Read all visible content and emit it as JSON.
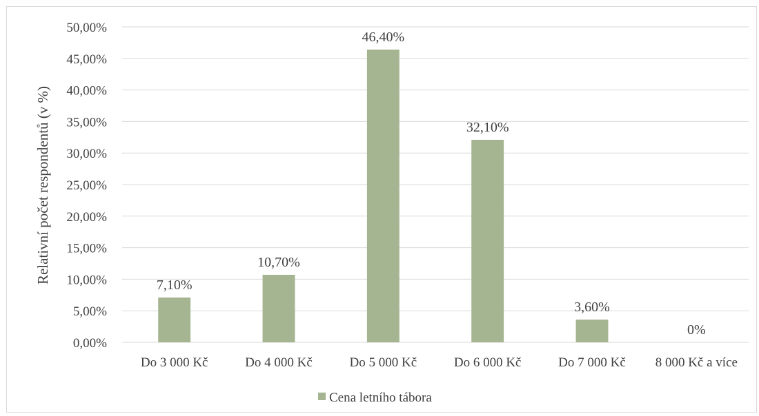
{
  "chart_data": {
    "type": "bar",
    "categories": [
      "Do 3 000 Kč",
      "Do 4 000 Kč",
      "Do 5 000 Kč",
      "Do 6 000 Kč",
      "Do 7 000 Kč",
      "8 000 Kč a více"
    ],
    "series": [
      {
        "name": "Cena letního tábora",
        "values": [
          7.1,
          10.7,
          46.4,
          32.1,
          3.6,
          0
        ],
        "data_labels": [
          "7,10%",
          "10,70%",
          "46,40%",
          "32,10%",
          "3,60%",
          "0%"
        ],
        "color": "#a5b592"
      }
    ],
    "ylabel": "Relativní počet respondentů (v %)",
    "xlabel": "",
    "ylim": [
      0,
      50
    ],
    "yticks": [
      "0,00%",
      "5,00%",
      "10,00%",
      "15,00%",
      "20,00%",
      "25,00%",
      "30,00%",
      "35,00%",
      "40,00%",
      "45,00%",
      "50,00%"
    ],
    "grid": true,
    "legend_position": "bottom",
    "gridline_color": "#d9d9d9"
  }
}
